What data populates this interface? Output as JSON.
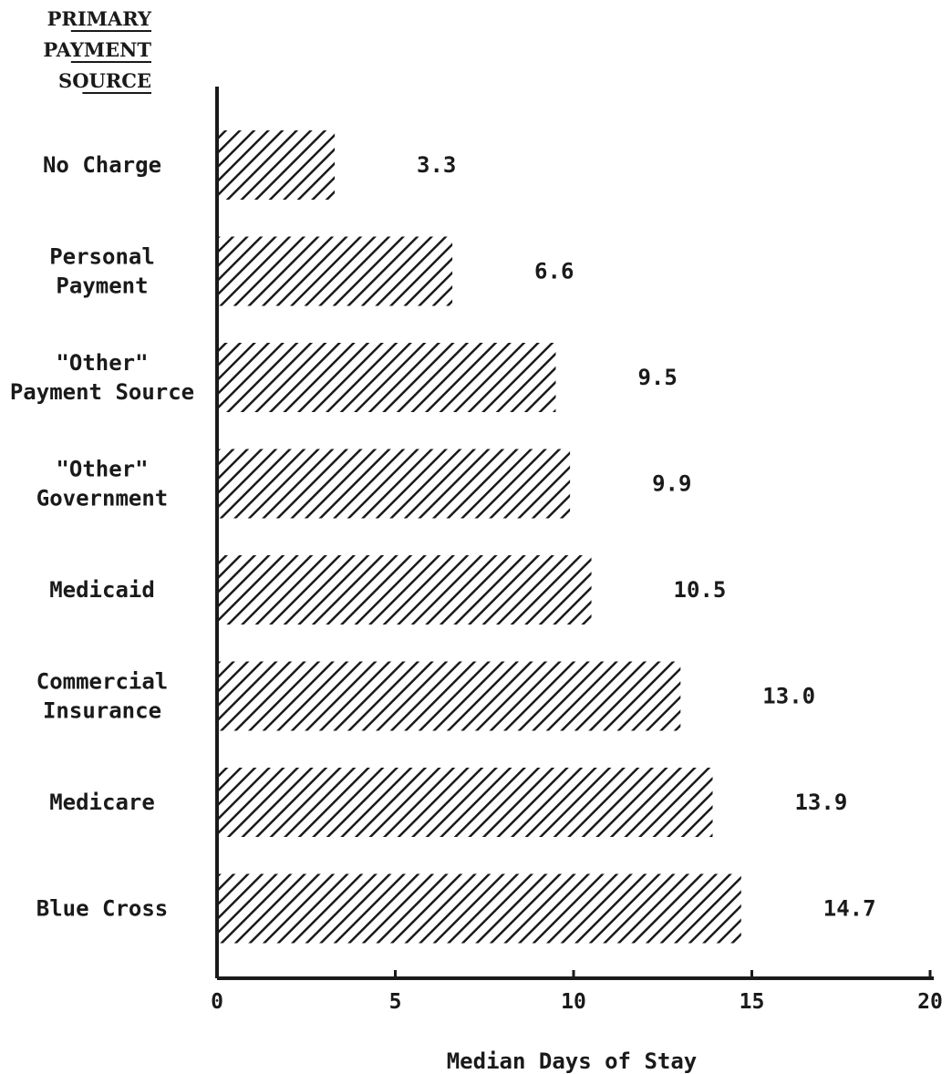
{
  "chart_data": {
    "type": "bar",
    "orientation": "horizontal",
    "category_axis_title": [
      "PRIMARY",
      "PAYMENT",
      "SOURCE"
    ],
    "xlabel": "Median Days of Stay",
    "xlim": [
      0,
      20
    ],
    "xticks": [
      "0",
      "5",
      "10",
      "15",
      "20"
    ],
    "categories": [
      [
        "No Charge"
      ],
      [
        "Personal",
        "Payment"
      ],
      [
        "\"Other\"",
        "Payment Source"
      ],
      [
        "\"Other\"",
        "Government"
      ],
      [
        "Medicaid"
      ],
      [
        "Commercial",
        "Insurance"
      ],
      [
        "Medicare"
      ],
      [
        "Blue Cross"
      ]
    ],
    "values": [
      3.3,
      6.6,
      9.5,
      9.9,
      10.5,
      13.0,
      13.9,
      14.7
    ],
    "value_labels": [
      "3.3",
      "6.6",
      "9.5",
      "9.9",
      "10.5",
      "13.0",
      "13.9",
      "14.7"
    ],
    "bar_fill": "hatched",
    "color": "#1a1a1a",
    "grid": false,
    "legend": "none"
  }
}
